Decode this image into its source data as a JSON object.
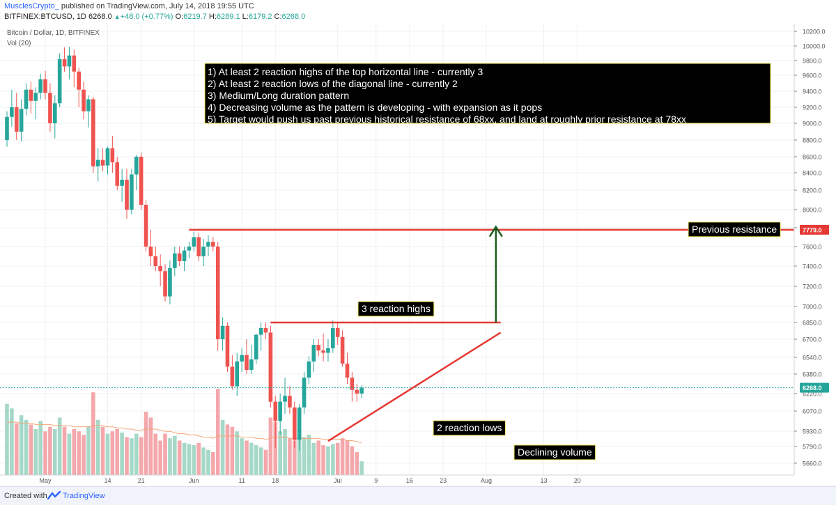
{
  "header": {
    "author": "MusclesCrypto_",
    "published": "published on TradingView.com, July 14, 2018 19:55 UTC",
    "symbol": "BITFINEX:BTCUSD, 1D",
    "last": "6268.0",
    "change_arrow": "▲",
    "change": "+48.0 (+0.77%)",
    "o_label": "O:",
    "o": "6219.7",
    "h_label": "H:",
    "h": "6289.1",
    "l_label": "L:",
    "l": "6179.2",
    "c_label": "C:",
    "c": "6268.0"
  },
  "footer": {
    "created": "Created with",
    "brand": "TradingView",
    "brand_icon": "tradingview-logo-icon"
  },
  "colors": {
    "up": "#26a69a",
    "down": "#ef5350",
    "up_vol": "#a6d8c8",
    "down_vol": "#f4a8ac",
    "ma": "#f5a474",
    "line": "#e53935",
    "arrow": "#1e5c1e",
    "box_bg": "#000000",
    "box_border": "#f2e85a"
  },
  "chart_data": {
    "type": "candlestick",
    "title": "Bitcoin / Dollar, 1D, BITFINEX",
    "volume_label": "Vol (20)",
    "y_ticks": [
      5660,
      5790,
      5930,
      6070,
      6220,
      6380,
      6540,
      6700,
      6850,
      7000,
      7200,
      7400,
      7600,
      7800,
      8000,
      8200,
      8400,
      8600,
      8800,
      9000,
      9200,
      9400,
      9600,
      9800,
      10000,
      10200
    ],
    "y_tick_labels": [
      "5660.0",
      "5790.0",
      "5930.0",
      "6070.0",
      "6220.0",
      "6380.0",
      "6540.0",
      "6700.0",
      "6850.0",
      "7000.0",
      "7200.0",
      "7400.0",
      "7600.0",
      "7800.0",
      "8000.0",
      "8200.0",
      "8400.0",
      "8600.0",
      "8800.0",
      "9000.0",
      "9200.0",
      "9400.0",
      "9600.0",
      "9800.0",
      "10000.0",
      "10200.0"
    ],
    "x_start_date": "2018-04-23",
    "x_ticks": [
      {
        "day": 8,
        "label": "May"
      },
      {
        "day": 21,
        "label": "14"
      },
      {
        "day": 28,
        "label": "21"
      },
      {
        "day": 39,
        "label": "Jun"
      },
      {
        "day": 49,
        "label": "11"
      },
      {
        "day": 56,
        "label": "18"
      },
      {
        "day": 69,
        "label": "Jul"
      },
      {
        "day": 77,
        "label": "9"
      },
      {
        "day": 84,
        "label": "16"
      },
      {
        "day": 91,
        "label": "23"
      },
      {
        "day": 100,
        "label": "Aug"
      },
      {
        "day": 112,
        "label": "13"
      },
      {
        "day": 119,
        "label": "20"
      }
    ],
    "candles": [
      [
        8800,
        9150,
        8720,
        9080
      ],
      [
        9080,
        9420,
        8960,
        9200
      ],
      [
        9200,
        9380,
        8800,
        8900
      ],
      [
        8900,
        9300,
        8780,
        9180
      ],
      [
        9180,
        9500,
        9100,
        9420
      ],
      [
        9420,
        9520,
        9120,
        9280
      ],
      [
        9280,
        9450,
        9050,
        9380
      ],
      [
        9380,
        9620,
        9300,
        9550
      ],
      [
        9550,
        9660,
        9300,
        9380
      ],
      [
        9380,
        9500,
        8900,
        9000
      ],
      [
        9000,
        9350,
        8820,
        9250
      ],
      [
        9250,
        9900,
        9200,
        9820
      ],
      [
        9820,
        9980,
        9650,
        9720
      ],
      [
        9720,
        9990,
        9550,
        9870
      ],
      [
        9870,
        9950,
        9450,
        9650
      ],
      [
        9650,
        9700,
        9200,
        9420
      ],
      [
        9420,
        9520,
        9050,
        9150
      ],
      [
        9150,
        9350,
        8950,
        9300
      ],
      [
        9300,
        9330,
        8400,
        8480
      ],
      [
        8480,
        8700,
        8300,
        8560
      ],
      [
        8560,
        8700,
        8420,
        8490
      ],
      [
        8490,
        8720,
        8380,
        8700
      ],
      [
        8700,
        8850,
        8400,
        8530
      ],
      [
        8530,
        8600,
        8200,
        8250
      ],
      [
        8250,
        8450,
        8080,
        8320
      ],
      [
        8320,
        8450,
        7900,
        8000
      ],
      [
        8000,
        8450,
        7950,
        8380
      ],
      [
        8380,
        8620,
        8200,
        8600
      ],
      [
        8600,
        8650,
        8000,
        8050
      ],
      [
        8050,
        8100,
        7550,
        7600
      ],
      [
        7600,
        7780,
        7400,
        7500
      ],
      [
        7500,
        7600,
        7350,
        7400
      ],
      [
        7400,
        7520,
        7200,
        7350
      ],
      [
        7350,
        7420,
        7050,
        7100
      ],
      [
        7100,
        7460,
        7020,
        7380
      ],
      [
        7380,
        7600,
        7300,
        7530
      ],
      [
        7530,
        7600,
        7400,
        7450
      ],
      [
        7450,
        7600,
        7350,
        7560
      ],
      [
        7560,
        7650,
        7480,
        7600
      ],
      [
        7600,
        7760,
        7550,
        7700
      ],
      [
        7700,
        7750,
        7450,
        7500
      ],
      [
        7500,
        7680,
        7400,
        7600
      ],
      [
        7600,
        7720,
        7500,
        7650
      ],
      [
        7650,
        7700,
        7550,
        7600
      ],
      [
        7600,
        7650,
        6600,
        6700
      ],
      [
        6700,
        6900,
        6600,
        6820
      ],
      [
        6820,
        6850,
        6400,
        6450
      ],
      [
        6450,
        6560,
        6250,
        6280
      ],
      [
        6280,
        6580,
        6200,
        6500
      ],
      [
        6500,
        6620,
        6400,
        6560
      ],
      [
        6560,
        6700,
        6380,
        6420
      ],
      [
        6420,
        6650,
        6380,
        6520
      ],
      [
        6520,
        6750,
        6480,
        6740
      ],
      [
        6740,
        6850,
        6600,
        6800
      ],
      [
        6800,
        6850,
        6700,
        6760
      ],
      [
        6760,
        6820,
        6100,
        6150
      ],
      [
        6150,
        6200,
        5780,
        6000
      ],
      [
        6000,
        6220,
        5900,
        6150
      ],
      [
        6150,
        6350,
        6050,
        6200
      ],
      [
        6200,
        6280,
        6050,
        6100
      ],
      [
        6100,
        6150,
        5780,
        5850
      ],
      [
        5850,
        6130,
        5760,
        6100
      ],
      [
        6100,
        6400,
        6050,
        6350
      ],
      [
        6350,
        6550,
        6300,
        6500
      ],
      [
        6500,
        6700,
        6400,
        6650
      ],
      [
        6650,
        6700,
        6550,
        6600
      ],
      [
        6600,
        6750,
        6500,
        6580
      ],
      [
        6580,
        6700,
        6500,
        6620
      ],
      [
        6620,
        6870,
        6580,
        6800
      ],
      [
        6800,
        6850,
        6650,
        6720
      ],
      [
        6720,
        6780,
        6450,
        6480
      ],
      [
        6480,
        6580,
        6300,
        6350
      ],
      [
        6350,
        6400,
        6150,
        6250
      ],
      [
        6250,
        6300,
        6150,
        6220
      ],
      [
        6219.7,
        6289.1,
        6179.2,
        6268.0
      ]
    ],
    "volume": [
      0.62,
      0.58,
      0.45,
      0.52,
      0.48,
      0.44,
      0.4,
      0.47,
      0.38,
      0.42,
      0.4,
      0.5,
      0.42,
      0.36,
      0.4,
      0.38,
      0.35,
      0.42,
      0.72,
      0.48,
      0.42,
      0.36,
      0.38,
      0.4,
      0.37,
      0.33,
      0.32,
      0.36,
      0.33,
      0.55,
      0.5,
      0.36,
      0.3,
      0.36,
      0.32,
      0.34,
      0.3,
      0.28,
      0.27,
      0.26,
      0.28,
      0.24,
      0.22,
      0.2,
      0.75,
      0.48,
      0.44,
      0.42,
      0.38,
      0.32,
      0.3,
      0.28,
      0.26,
      0.24,
      0.22,
      0.5,
      0.46,
      0.38,
      0.4,
      0.32,
      0.3,
      0.36,
      0.33,
      0.35,
      0.28,
      0.3,
      0.26,
      0.25,
      0.27,
      0.28,
      0.32,
      0.3,
      0.25,
      0.2,
      0.12
    ],
    "volume_ma": [
      0.46,
      0.46,
      0.46,
      0.45,
      0.45,
      0.45,
      0.44,
      0.44,
      0.44,
      0.44,
      0.43,
      0.43,
      0.43,
      0.43,
      0.42,
      0.42,
      0.42,
      0.42,
      0.43,
      0.43,
      0.43,
      0.42,
      0.42,
      0.41,
      0.41,
      0.4,
      0.4,
      0.39,
      0.39,
      0.4,
      0.4,
      0.4,
      0.39,
      0.38,
      0.38,
      0.37,
      0.36,
      0.36,
      0.35,
      0.35,
      0.34,
      0.33,
      0.33,
      0.32,
      0.34,
      0.34,
      0.34,
      0.34,
      0.34,
      0.33,
      0.33,
      0.33,
      0.32,
      0.32,
      0.31,
      0.32,
      0.33,
      0.33,
      0.33,
      0.32,
      0.32,
      0.32,
      0.32,
      0.32,
      0.32,
      0.32,
      0.31,
      0.31,
      0.31,
      0.31,
      0.31,
      0.3,
      0.3,
      0.29,
      0.28
    ],
    "last_price": 6268.0,
    "last_price_label": "6268.0",
    "resistance_label_value": "7779.0",
    "lines": {
      "previous_resistance": {
        "from_day": 38,
        "to_day": 103,
        "price": 7779
      },
      "reaction_highs": {
        "from_day": 55,
        "to_day": 103,
        "price": 6850
      },
      "diagonal": {
        "from_day": 67,
        "from_price": 5840,
        "to_day": 103,
        "to_price": 6760
      },
      "target_arrow": {
        "day": 102,
        "from_price": 6850,
        "to_price": 7810
      }
    },
    "annotations": {
      "rules": [
        "1) At least 2 reaction highs of the top horizontal line - currently 3",
        "2) At least 2 reaction lows of the diagonal line - currently 2",
        "3) Medium/Long duration pattern",
        "4) Decreasing volume as the pattern is developing - with expansion as it pops",
        "5) Target would push us past previous historical resistance of 68xx, and land at roughly prior resistance at 78xx"
      ],
      "previous_resistance": "Previous resistance",
      "reaction_highs": "3 reaction highs",
      "reaction_lows": "2 reaction lows",
      "declining_volume": "Declining volume"
    }
  }
}
